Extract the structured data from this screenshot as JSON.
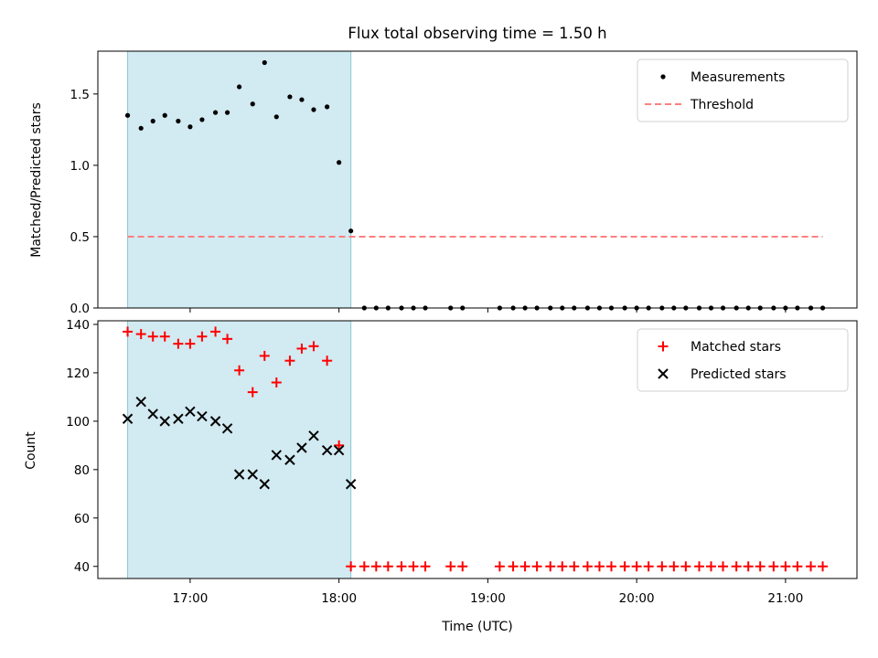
{
  "chart_data": {
    "type": "scatter",
    "title": "Flux total observing time = 1.50 h",
    "xlabel": "Time (UTC)",
    "x_unit": "decimal hours UTC",
    "xlim": [
      16.38,
      21.48
    ],
    "x_ticks": [
      {
        "value": 17,
        "label": "17:00"
      },
      {
        "value": 18,
        "label": "18:00"
      },
      {
        "value": 19,
        "label": "19:00"
      },
      {
        "value": 20,
        "label": "20:00"
      },
      {
        "value": 21,
        "label": "21:00"
      }
    ],
    "highlight_span": {
      "x0": 16.58,
      "x1": 18.08,
      "color": "#add8e6"
    },
    "panels": [
      {
        "name": "ratio",
        "ylabel": "Matched/Predicted stars",
        "ylim": [
          0,
          1.8
        ],
        "y_ticks": [
          {
            "value": 0.0,
            "label": "0.0"
          },
          {
            "value": 0.5,
            "label": "0.5"
          },
          {
            "value": 1.0,
            "label": "1.0"
          },
          {
            "value": 1.5,
            "label": "1.5"
          }
        ],
        "legend_placement": "top-right",
        "series": [
          {
            "name": "Measurements",
            "marker": "dot",
            "color": "#000000",
            "points": [
              [
                16.58,
                1.35
              ],
              [
                16.67,
                1.26
              ],
              [
                16.75,
                1.31
              ],
              [
                16.83,
                1.35
              ],
              [
                16.92,
                1.31
              ],
              [
                17.0,
                1.27
              ],
              [
                17.08,
                1.32
              ],
              [
                17.17,
                1.37
              ],
              [
                17.25,
                1.37
              ],
              [
                17.33,
                1.55
              ],
              [
                17.42,
                1.43
              ],
              [
                17.5,
                1.72
              ],
              [
                17.58,
                1.34
              ],
              [
                17.67,
                1.48
              ],
              [
                17.75,
                1.46
              ],
              [
                17.83,
                1.39
              ],
              [
                17.92,
                1.41
              ],
              [
                18.0,
                1.02
              ],
              [
                18.08,
                0.54
              ],
              [
                18.17,
                0
              ],
              [
                18.25,
                0
              ],
              [
                18.33,
                0
              ],
              [
                18.42,
                0
              ],
              [
                18.5,
                0
              ],
              [
                18.58,
                0
              ],
              [
                18.75,
                0
              ],
              [
                18.83,
                0
              ],
              [
                19.08,
                0
              ],
              [
                19.17,
                0
              ],
              [
                19.25,
                0
              ],
              [
                19.33,
                0
              ],
              [
                19.42,
                0
              ],
              [
                19.5,
                0
              ],
              [
                19.58,
                0
              ],
              [
                19.67,
                0
              ],
              [
                19.75,
                0
              ],
              [
                19.83,
                0
              ],
              [
                19.92,
                0
              ],
              [
                20.0,
                0
              ],
              [
                20.08,
                0
              ],
              [
                20.17,
                0
              ],
              [
                20.25,
                0
              ],
              [
                20.33,
                0
              ],
              [
                20.42,
                0
              ],
              [
                20.5,
                0
              ],
              [
                20.58,
                0
              ],
              [
                20.67,
                0
              ],
              [
                20.75,
                0
              ],
              [
                20.83,
                0
              ],
              [
                20.92,
                0
              ],
              [
                21.0,
                0
              ],
              [
                21.08,
                0
              ],
              [
                21.17,
                0
              ],
              [
                21.25,
                0
              ]
            ]
          },
          {
            "name": "Threshold",
            "marker": "dashed-line",
            "color": "#ff7f7f",
            "points": [
              [
                16.58,
                0.5
              ],
              [
                21.25,
                0.5
              ]
            ]
          }
        ]
      },
      {
        "name": "count",
        "ylabel": "Count",
        "ylim": [
          35,
          141.5
        ],
        "y_ticks": [
          {
            "value": 40,
            "label": "40"
          },
          {
            "value": 60,
            "label": "60"
          },
          {
            "value": 80,
            "label": "80"
          },
          {
            "value": 100,
            "label": "100"
          },
          {
            "value": 120,
            "label": "120"
          },
          {
            "value": 140,
            "label": "140"
          }
        ],
        "legend_placement": "top-right",
        "series": [
          {
            "name": "Matched stars",
            "marker": "plus",
            "color": "#ff0000",
            "points": [
              [
                16.58,
                137
              ],
              [
                16.67,
                136
              ],
              [
                16.75,
                135
              ],
              [
                16.83,
                135
              ],
              [
                16.92,
                132
              ],
              [
                17.0,
                132
              ],
              [
                17.08,
                135
              ],
              [
                17.17,
                137
              ],
              [
                17.25,
                134
              ],
              [
                17.33,
                121
              ],
              [
                17.42,
                112
              ],
              [
                17.5,
                127
              ],
              [
                17.58,
                116
              ],
              [
                17.67,
                125
              ],
              [
                17.75,
                130
              ],
              [
                17.83,
                131
              ],
              [
                17.92,
                125
              ],
              [
                18.0,
                90
              ],
              [
                18.08,
                40
              ],
              [
                18.17,
                40
              ],
              [
                18.25,
                40
              ],
              [
                18.33,
                40
              ],
              [
                18.42,
                40
              ],
              [
                18.5,
                40
              ],
              [
                18.58,
                40
              ],
              [
                18.75,
                40
              ],
              [
                18.83,
                40
              ],
              [
                19.08,
                40
              ],
              [
                19.17,
                40
              ],
              [
                19.25,
                40
              ],
              [
                19.33,
                40
              ],
              [
                19.42,
                40
              ],
              [
                19.5,
                40
              ],
              [
                19.58,
                40
              ],
              [
                19.67,
                40
              ],
              [
                19.75,
                40
              ],
              [
                19.83,
                40
              ],
              [
                19.92,
                40
              ],
              [
                20.0,
                40
              ],
              [
                20.08,
                40
              ],
              [
                20.17,
                40
              ],
              [
                20.25,
                40
              ],
              [
                20.33,
                40
              ],
              [
                20.42,
                40
              ],
              [
                20.5,
                40
              ],
              [
                20.58,
                40
              ],
              [
                20.67,
                40
              ],
              [
                20.75,
                40
              ],
              [
                20.83,
                40
              ],
              [
                20.92,
                40
              ],
              [
                21.0,
                40
              ],
              [
                21.08,
                40
              ],
              [
                21.17,
                40
              ],
              [
                21.25,
                40
              ]
            ]
          },
          {
            "name": "Predicted stars",
            "marker": "x",
            "color": "#000000",
            "points": [
              [
                16.58,
                101
              ],
              [
                16.67,
                108
              ],
              [
                16.75,
                103
              ],
              [
                16.83,
                100
              ],
              [
                16.92,
                101
              ],
              [
                17.0,
                104
              ],
              [
                17.08,
                102
              ],
              [
                17.17,
                100
              ],
              [
                17.25,
                97
              ],
              [
                17.33,
                78
              ],
              [
                17.42,
                78
              ],
              [
                17.5,
                74
              ],
              [
                17.58,
                86
              ],
              [
                17.67,
                84
              ],
              [
                17.75,
                89
              ],
              [
                17.83,
                94
              ],
              [
                17.92,
                88
              ],
              [
                18.0,
                88
              ],
              [
                18.08,
                74
              ]
            ]
          }
        ]
      }
    ]
  }
}
